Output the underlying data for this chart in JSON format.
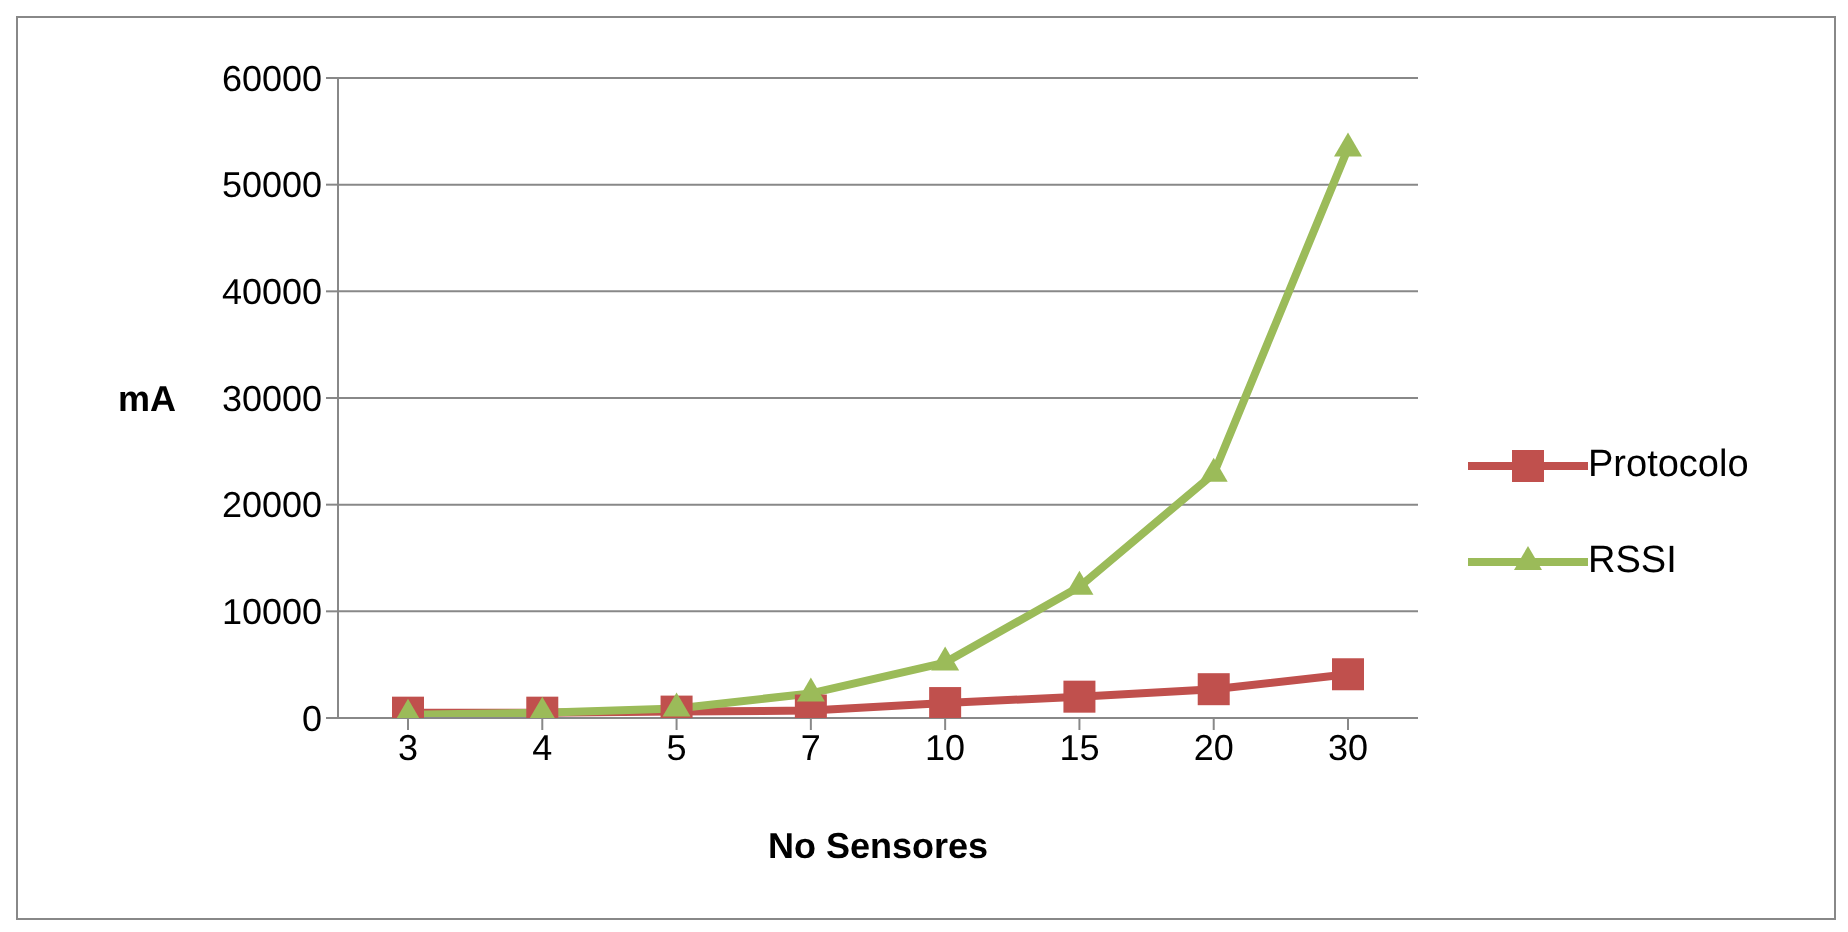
{
  "chart_data": {
    "type": "line",
    "xlabel": "No Sensores",
    "ylabel": "mA",
    "categories": [
      "3",
      "4",
      "5",
      "7",
      "10",
      "15",
      "20",
      "30"
    ],
    "series": [
      {
        "name": "Protocolo",
        "color": "#c0504d",
        "marker": "square",
        "values": [
          500,
          500,
          600,
          700,
          1400,
          2000,
          2700,
          4100
        ]
      },
      {
        "name": "RSSI",
        "color": "#9bbb59",
        "marker": "triangle",
        "values": [
          300,
          500,
          900,
          2300,
          5200,
          12300,
          22900,
          53400
        ]
      }
    ],
    "ylim": [
      0,
      60000
    ],
    "yticks": [
      0,
      10000,
      20000,
      30000,
      40000,
      50000,
      60000
    ],
    "grid": "y",
    "legend": "right"
  }
}
